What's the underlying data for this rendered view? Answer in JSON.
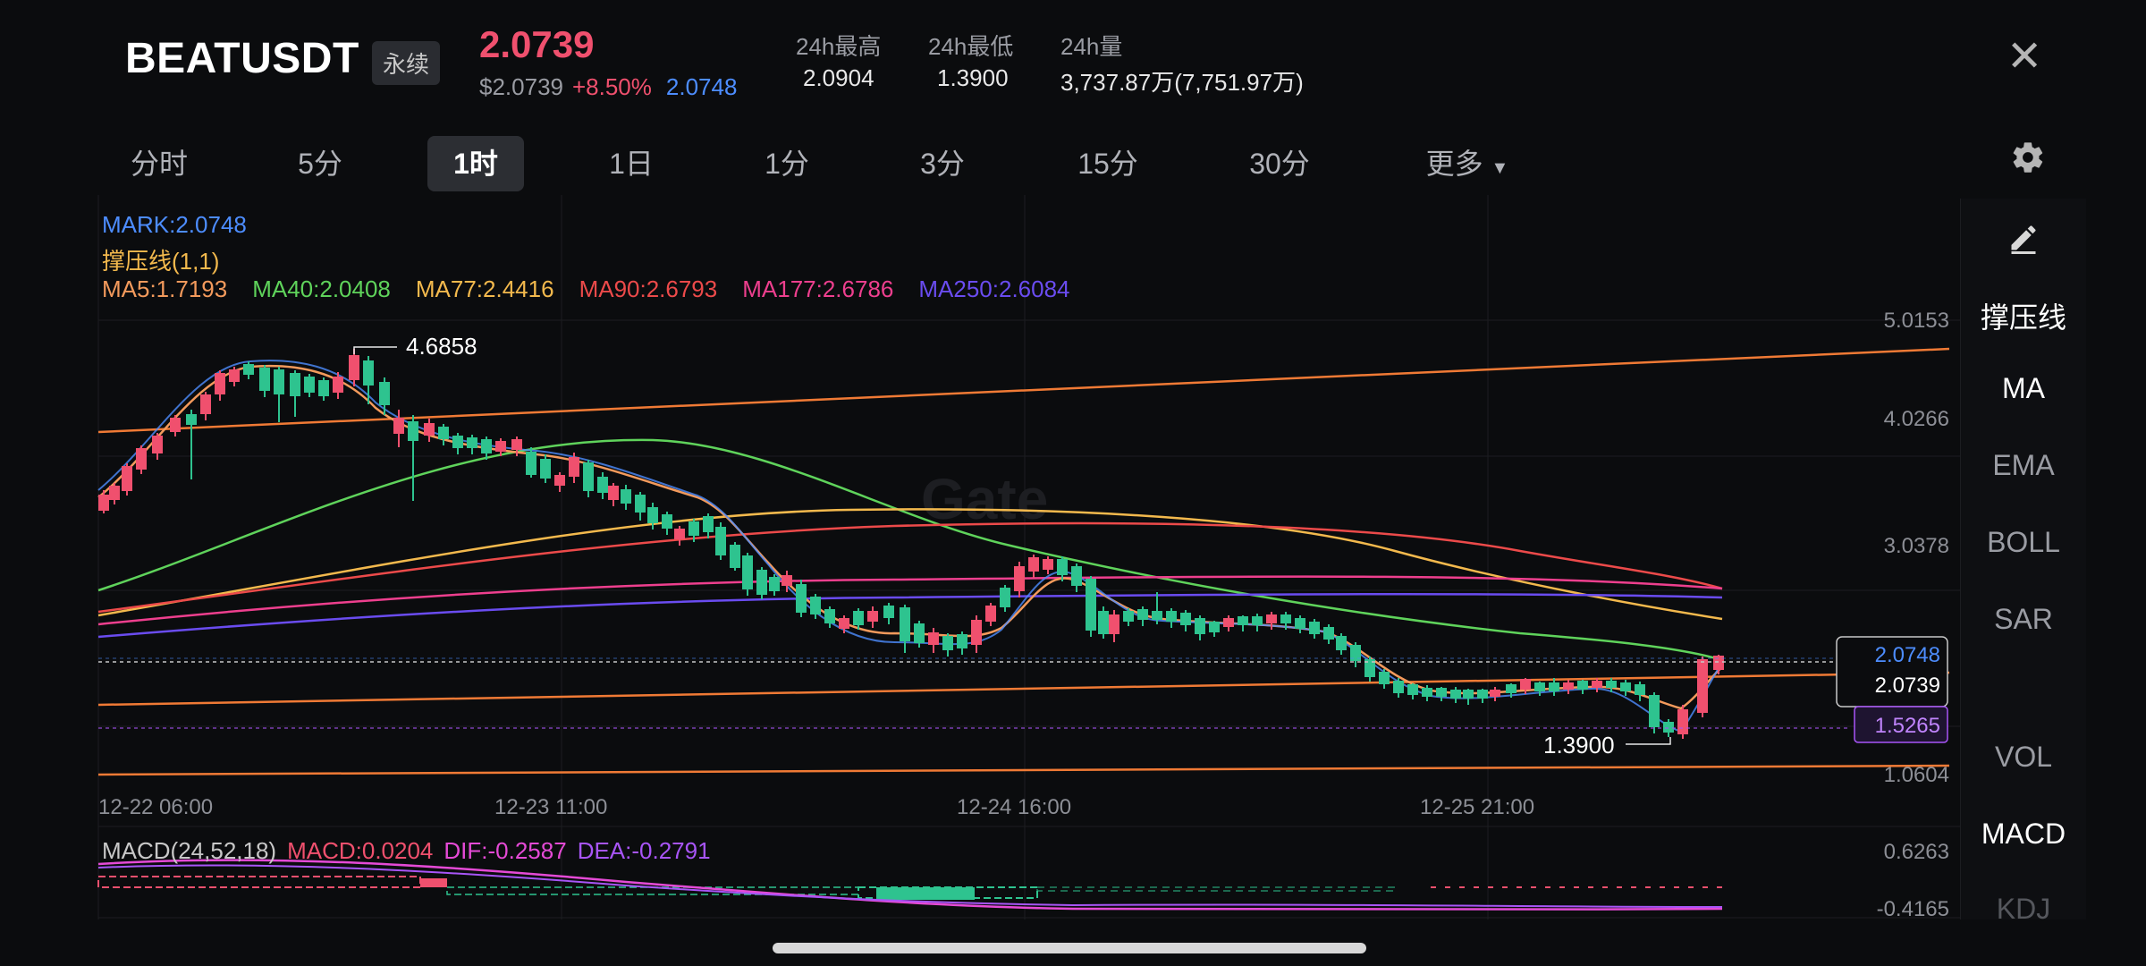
{
  "header": {
    "symbol": "BEATUSDT",
    "contract_badge": "永续",
    "last_price": "2.0739",
    "usd_price": "$2.0739",
    "change_pct": "+8.50%",
    "mark_price": "2.0748",
    "stats": [
      {
        "label": "24h最高",
        "value": "2.0904"
      },
      {
        "label": "24h最低",
        "value": "1.3900"
      },
      {
        "label": "24h量",
        "value": "3,737.87万(7,751.97万)"
      }
    ],
    "close_icon": "close-icon"
  },
  "timeframes": [
    "分时",
    "5分",
    "1时",
    "1日",
    "1分",
    "3分",
    "15分",
    "30分"
  ],
  "active_timeframe": "1时",
  "more_label": "更多",
  "settings_icon": "gear-icon",
  "right_panel": {
    "edit_icon": "pencil-icon",
    "items": [
      "撑压线",
      "MA",
      "EMA",
      "BOLL",
      "SAR",
      "VOL",
      "MACD",
      "KDJ"
    ]
  },
  "legend": {
    "mark": "MARK:2.0748",
    "support_line": "撑压线(1,1)",
    "ma": [
      {
        "text": "MA5:1.7193",
        "color": "#f39a5c"
      },
      {
        "text": "MA40:2.0408",
        "color": "#5fd35b"
      },
      {
        "text": "MA77:2.4416",
        "color": "#f3b94d"
      },
      {
        "text": "MA90:2.6793",
        "color": "#ec4a4a"
      },
      {
        "text": "MA177:2.6786",
        "color": "#ee3f8e"
      },
      {
        "text": "MA250:2.6084",
        "color": "#6a4cf0"
      }
    ]
  },
  "macd_legend": {
    "params": "MACD(24,52,18)",
    "macd": "MACD:0.0204",
    "dif": "DIF:-0.2587",
    "dea": "DEA:-0.2791"
  },
  "chart_data": {
    "type": "candlestick",
    "y_ticks": [
      "5.0153",
      "4.0266",
      "3.0378",
      "1.0604"
    ],
    "x_ticks": [
      "12-22 06:00",
      "12-23 11:00",
      "12-24 16:00",
      "12-25 21:00"
    ],
    "ylim": [
      1.0604,
      5.0153
    ],
    "high_marker": "4.6858",
    "low_marker": "1.3900",
    "price_tags": {
      "mark": "2.0748",
      "last": "2.0739",
      "dashed_level": "1.5265"
    },
    "macd_ticks": [
      "0.6263",
      "-0.4165"
    ],
    "colors": {
      "up": "#f0506e",
      "down": "#2ec38f"
    }
  },
  "watermark": "Gate"
}
